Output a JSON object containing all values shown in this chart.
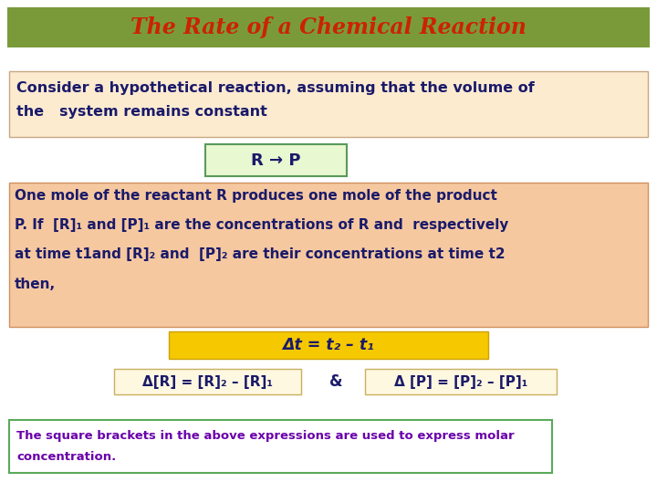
{
  "title": "The Rate of a Chemical Reaction",
  "title_color": "#CC2200",
  "title_bg_color": "#7A9A3A",
  "title_font_size": 17,
  "bg_color": "#FFFFFF",
  "box1_text_line1": "Consider a hypothetical reaction, assuming that the volume of",
  "box1_text_line2": "the   system remains constant",
  "box1_bg": "#FDEBD0",
  "box1_border": "#C8A882",
  "arrow_box_text": "R → P",
  "arrow_box_bg": "#E8F8D0",
  "arrow_box_border": "#5A9A5A",
  "box2_lines": [
    "One mole of the reactant R produces one mole of the product",
    "P. If  [R]₁ and [P]₁ are the concentrations of R and  respectively",
    "at time t1and [R]₂ and  [P]₂ are their concentrations at time t2",
    "then,"
  ],
  "box2_bg": "#F5C8A0",
  "box2_border": "#D09060",
  "delta_t_text": "Δt = t₂ – t₁",
  "delta_t_bg": "#F5C800",
  "delta_t_border": "#D0A000",
  "eq_left_text": "Δ[R] = [R]₂ – [R]₁",
  "eq_right_text": "Δ [P] = [P]₂ – [P]₁",
  "eq_amp": "&",
  "eq_bg": "#FFF8E0",
  "eq_border": "#C8B060",
  "note_text_line1": "The square brackets in the above expressions are used to express molar",
  "note_text_line2": "concentration.",
  "note_bg": "#FFFFFF",
  "note_border": "#5AAA5A",
  "note_text_color": "#6A00AA",
  "main_text_color": "#1A1A6A"
}
